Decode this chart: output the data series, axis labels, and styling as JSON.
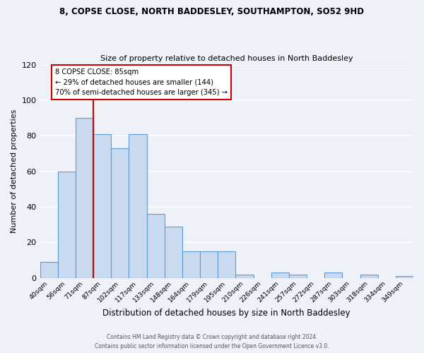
{
  "title": "8, COPSE CLOSE, NORTH BADDESLEY, SOUTHAMPTON, SO52 9HD",
  "subtitle": "Size of property relative to detached houses in North Baddesley",
  "xlabel": "Distribution of detached houses by size in North Baddesley",
  "ylabel": "Number of detached properties",
  "bar_labels": [
    "40sqm",
    "56sqm",
    "71sqm",
    "87sqm",
    "102sqm",
    "117sqm",
    "133sqm",
    "148sqm",
    "164sqm",
    "179sqm",
    "195sqm",
    "210sqm",
    "226sqm",
    "241sqm",
    "257sqm",
    "272sqm",
    "287sqm",
    "303sqm",
    "318sqm",
    "334sqm",
    "349sqm"
  ],
  "bar_values": [
    9,
    60,
    90,
    81,
    73,
    81,
    36,
    29,
    15,
    15,
    15,
    2,
    0,
    3,
    2,
    0,
    3,
    0,
    2,
    0,
    1
  ],
  "bar_color": "#c9d9f0",
  "bar_edgecolor": "#5b9bd5",
  "annotation_text_line1": "8 COPSE CLOSE: 85sqm",
  "annotation_text_line2": "← 29% of detached houses are smaller (144)",
  "annotation_text_line3": "70% of semi-detached houses are larger (345) →",
  "vline_color": "#cc0000",
  "ylim": [
    0,
    120
  ],
  "yticks": [
    0,
    20,
    40,
    60,
    80,
    100,
    120
  ],
  "footnote1": "Contains HM Land Registry data © Crown copyright and database right 2024.",
  "footnote2": "Contains public sector information licensed under the Open Government Licence v3.0.",
  "bg_color": "#eef2f8",
  "plot_bg_color": "#eef2f8",
  "grid_color": "#ffffff",
  "annotation_box_color": "#ffffff",
  "annotation_box_edgecolor": "#cc0000"
}
